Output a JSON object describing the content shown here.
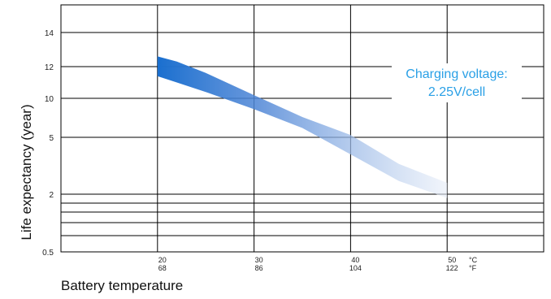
{
  "chart_data": {
    "type": "area",
    "title": "",
    "xlabel": "Battery temperature",
    "ylabel": "Life expectancy (year)",
    "x_units": [
      "°C",
      "°F"
    ],
    "x_ticks": [
      {
        "c": "20",
        "f": "68"
      },
      {
        "c": "30",
        "f": "86"
      },
      {
        "c": "40",
        "f": "104"
      },
      {
        "c": "50",
        "f": "122"
      }
    ],
    "xlim": [
      10,
      60
    ],
    "y_ticks": [
      "14",
      "12",
      "10",
      "5",
      "2",
      "0.5"
    ],
    "grid": true,
    "annotation": [
      "Charging voltage:",
      "2.25V/cell"
    ],
    "series": [
      {
        "x": [
          20,
          22,
          25,
          30,
          35,
          40,
          45,
          50
        ],
        "y_upper": [
          12.6,
          12.3,
          11.6,
          10.2,
          7.6,
          5.3,
          3.6,
          2.6
        ],
        "y_lower": [
          11.4,
          11.0,
          10.4,
          8.6,
          6.2,
          4.1,
          2.7,
          1.9
        ]
      }
    ],
    "colors": {
      "band_start": "#1a6fcf",
      "band_end": "#e8eef8",
      "annotation": "#2aa0e6",
      "grid": "#000000"
    }
  }
}
